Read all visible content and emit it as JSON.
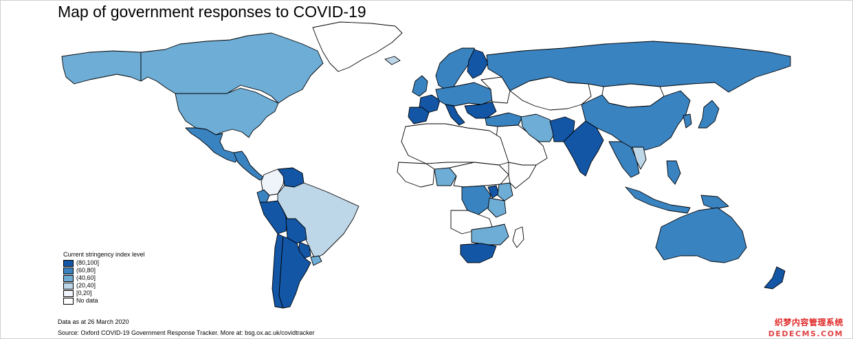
{
  "title": "Map of government responses to COVID-19",
  "legend": {
    "title": "Current stringency index level",
    "items": [
      {
        "label": "(80,100]",
        "color": "#1356a5"
      },
      {
        "label": "(60,80]",
        "color": "#3a83c1"
      },
      {
        "label": "(40,60]",
        "color": "#6eadd6"
      },
      {
        "label": "(20,40]",
        "color": "#bdd7e9"
      },
      {
        "label": "[0,20]",
        "color": "#eff4fb"
      },
      {
        "label": "No data",
        "color": "#ffffff"
      }
    ]
  },
  "notes": {
    "date": "Data as at 26 March 2020",
    "source": "Source: Oxford COVID-19 Government Response Tracker. More at: bsg.ox.ac.uk/covidtracker"
  },
  "watermark": {
    "line1": "织梦内容管理系统",
    "line2": "DEDECMS.COM"
  },
  "regions": [
    {
      "name": "alaska",
      "level": "(40,60]"
    },
    {
      "name": "canada",
      "level": "(40,60]"
    },
    {
      "name": "greenland",
      "level": "No data"
    },
    {
      "name": "united-states",
      "level": "(40,60]"
    },
    {
      "name": "mexico",
      "level": "(60,80]"
    },
    {
      "name": "central-america",
      "level": "(60,80]"
    },
    {
      "name": "colombia",
      "level": "[0,20]"
    },
    {
      "name": "venezuela",
      "level": "(80,100]"
    },
    {
      "name": "ecuador",
      "level": "(60,80]"
    },
    {
      "name": "peru",
      "level": "(80,100]"
    },
    {
      "name": "brazil",
      "level": "(20,40]"
    },
    {
      "name": "bolivia",
      "level": "(80,100]"
    },
    {
      "name": "paraguay",
      "level": "(80,100]"
    },
    {
      "name": "chile",
      "level": "(80,100]"
    },
    {
      "name": "argentina",
      "level": "(80,100]"
    },
    {
      "name": "uruguay",
      "level": "(40,60]"
    },
    {
      "name": "iceland",
      "level": "(20,40]"
    },
    {
      "name": "scandinavia",
      "level": "(60,80]"
    },
    {
      "name": "finland",
      "level": "(80,100]"
    },
    {
      "name": "uk-ireland",
      "level": "(60,80]"
    },
    {
      "name": "france",
      "level": "(80,100]"
    },
    {
      "name": "iberia",
      "level": "(80,100]"
    },
    {
      "name": "central-europe",
      "level": "(60,80]"
    },
    {
      "name": "italy",
      "level": "(80,100]"
    },
    {
      "name": "eastern-europe",
      "level": "No data"
    },
    {
      "name": "balkans",
      "level": "(80,100]"
    },
    {
      "name": "turkey",
      "level": "(60,80]"
    },
    {
      "name": "russia",
      "level": "(60,80]"
    },
    {
      "name": "kazakhstan",
      "level": "No data"
    },
    {
      "name": "mongolia",
      "level": "No data"
    },
    {
      "name": "china",
      "level": "(60,80]"
    },
    {
      "name": "korea",
      "level": "(60,80]"
    },
    {
      "name": "japan",
      "level": "(60,80]"
    },
    {
      "name": "middle-east",
      "level": "No data"
    },
    {
      "name": "iran",
      "level": "(40,60]"
    },
    {
      "name": "pakistan",
      "level": "(80,100]"
    },
    {
      "name": "india",
      "level": "(80,100]"
    },
    {
      "name": "southeast-asia",
      "level": "(60,80]"
    },
    {
      "name": "vietnam",
      "level": "(20,40]"
    },
    {
      "name": "indonesia",
      "level": "(60,80]"
    },
    {
      "name": "philippines",
      "level": "(60,80]"
    },
    {
      "name": "papua-new-guinea",
      "level": "(60,80]"
    },
    {
      "name": "australia",
      "level": "(60,80]"
    },
    {
      "name": "new-zealand",
      "level": "(80,100]"
    },
    {
      "name": "north-africa",
      "level": "No data"
    },
    {
      "name": "west-africa",
      "level": "No data"
    },
    {
      "name": "nigeria",
      "level": "(40,60]"
    },
    {
      "name": "central-africa",
      "level": "No data"
    },
    {
      "name": "drc",
      "level": "(60,80]"
    },
    {
      "name": "uganda-rwanda",
      "level": "(80,100]"
    },
    {
      "name": "kenya",
      "level": "(40,60]"
    },
    {
      "name": "horn-of-africa",
      "level": "No data"
    },
    {
      "name": "tanzania",
      "level": "(40,60]"
    },
    {
      "name": "angola-zambia",
      "level": "No data"
    },
    {
      "name": "zimbabwe-mozambique",
      "level": "(40,60]"
    },
    {
      "name": "south-africa",
      "level": "(80,100]"
    },
    {
      "name": "madagascar",
      "level": "No data"
    }
  ]
}
